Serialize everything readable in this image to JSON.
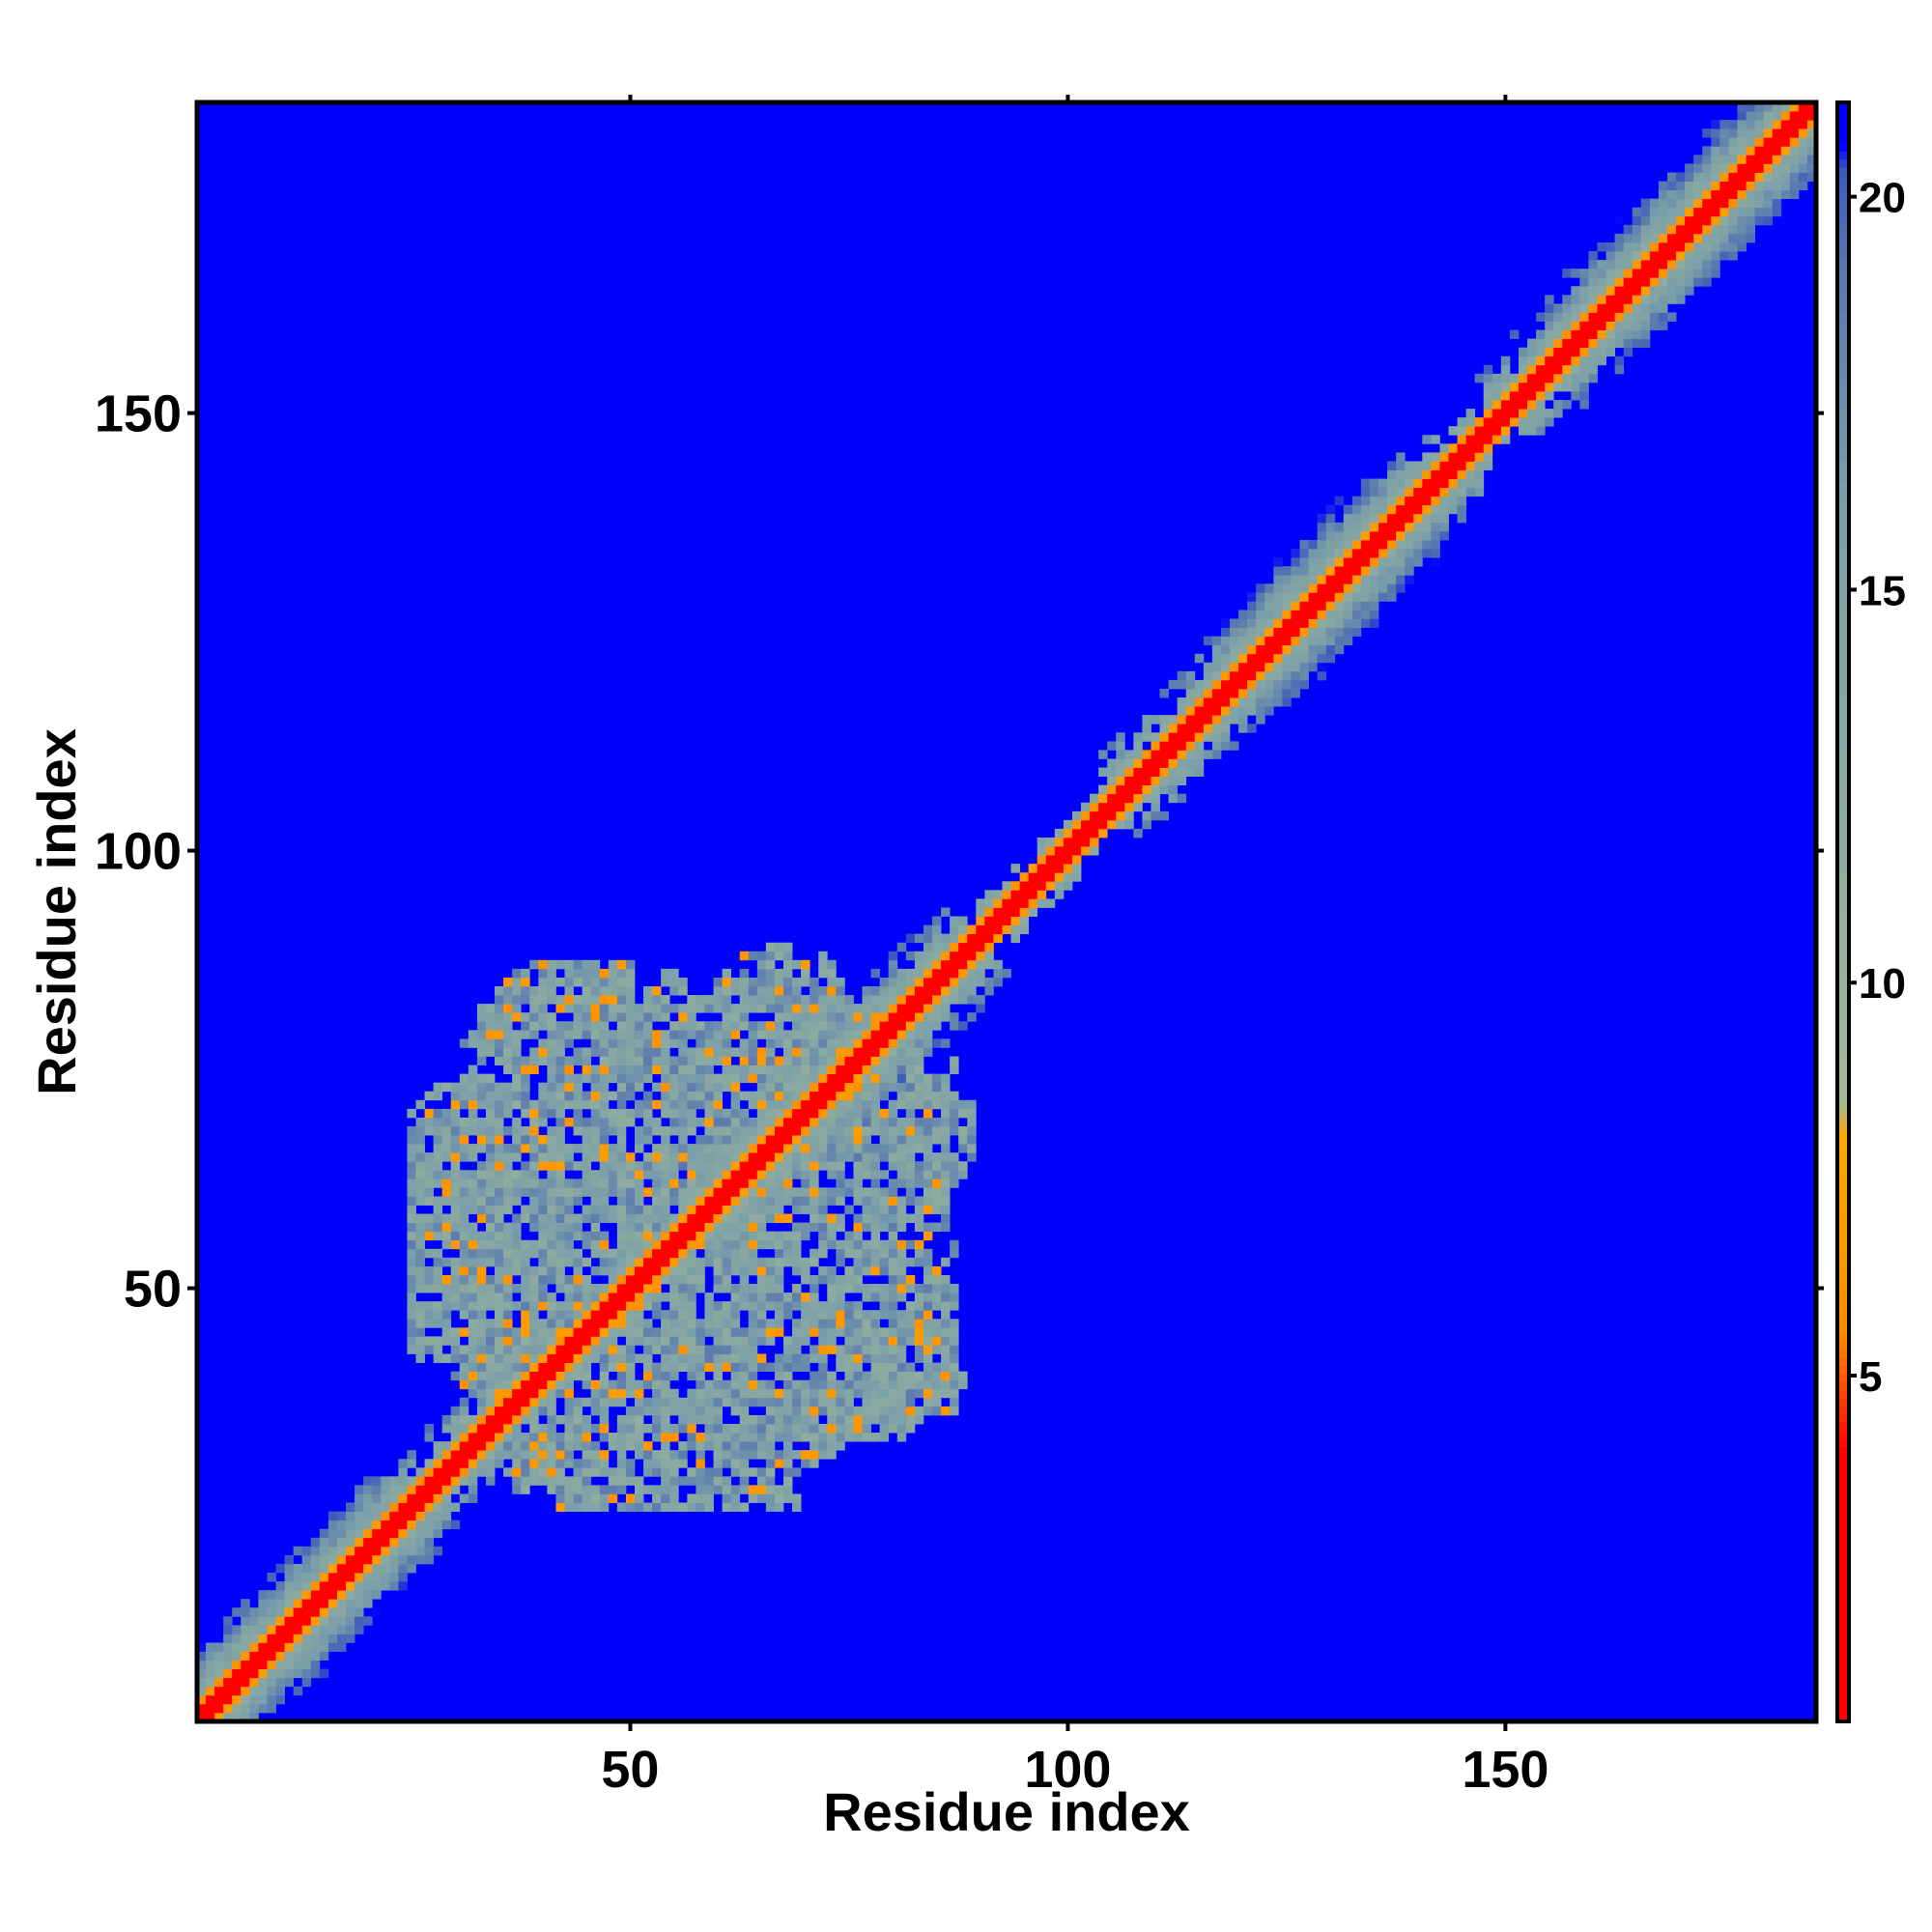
{
  "chart_data": {
    "type": "heatmap",
    "title": "",
    "xlabel": "Residue index",
    "ylabel": "Residue index",
    "n_residues": 185,
    "xlim": [
      1,
      185
    ],
    "ylim": [
      1,
      185
    ],
    "x_ticks": [
      50,
      100,
      150
    ],
    "y_ticks": [
      50,
      100,
      150
    ],
    "colorbar": {
      "ticks": [
        5,
        10,
        15,
        20
      ],
      "range": [
        0.6,
        21.2
      ],
      "colors": [
        "#ff0000",
        "#ff8c00",
        "#ffa500",
        "#a3b893",
        "#7b9fa9",
        "#4d6fb3",
        "#0000ff"
      ]
    },
    "background_value": 21,
    "background_color": "#0000ff",
    "features": {
      "diagonal": "red/orange band along i = j with green–grey halo (values 1–12)",
      "cluster_region": {
        "x_range": [
          24,
          90
        ],
        "y_range": [
          24,
          90
        ],
        "description": "mottled low-distance block around residues 25–90"
      }
    }
  }
}
